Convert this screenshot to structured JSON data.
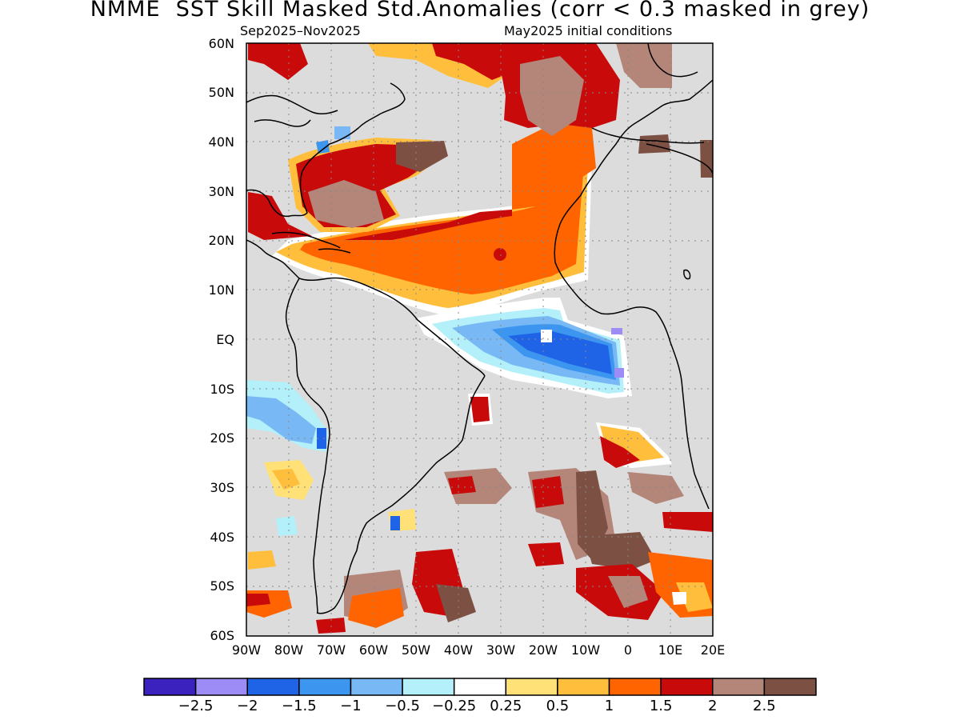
{
  "title": "NMME  SST Skill Masked Std.Anomalies (corr < 0.3 masked in grey)",
  "subtitle_left": "Sep2025–Nov2025",
  "subtitle_right": "May2025 initial conditions",
  "lat_labels": [
    "60N",
    "50N",
    "40N",
    "30N",
    "20N",
    "10N",
    "EQ",
    "10S",
    "20S",
    "30S",
    "40S",
    "50S",
    "60S"
  ],
  "lon_labels": [
    "90W",
    "80W",
    "70W",
    "60W",
    "50W",
    "40W",
    "30W",
    "20W",
    "10W",
    "0",
    "10E",
    "20E"
  ],
  "colorbar": {
    "colors": [
      "#3b22bf",
      "#9d8cf5",
      "#1f64e6",
      "#3c96f0",
      "#78b9f5",
      "#b4f0fa",
      "#ffffff",
      "#ffe178",
      "#ffbe3c",
      "#ff6400",
      "#c80a0a",
      "#b4867a",
      "#7d5044"
    ],
    "labels": [
      "−2.5",
      "−2",
      "−1.5",
      "−1",
      "−0.5",
      "−0.25",
      "0.25",
      "0.5",
      "1",
      "1.5",
      "2",
      "2.5"
    ]
  },
  "colors": {
    "mask_grey": "#dcdcdc",
    "coast": "#000000"
  }
}
